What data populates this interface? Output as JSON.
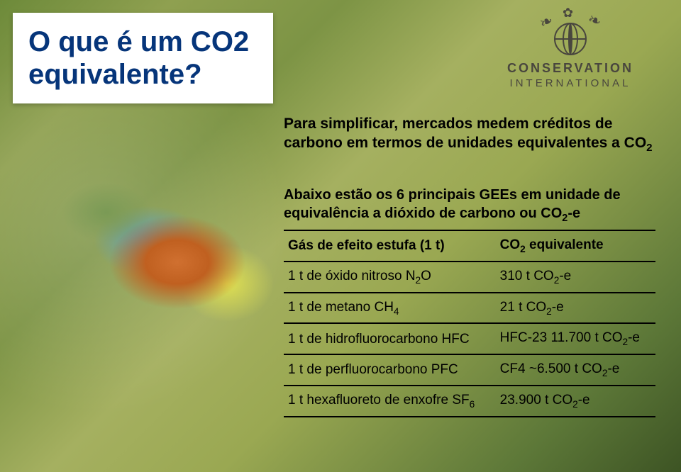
{
  "title": {
    "line1": "O que é um CO2",
    "line2": "equivalente?",
    "color": "#06357a",
    "background": "#ffffff",
    "font_size_pt": 30
  },
  "logo": {
    "line1": "CONSERVATION",
    "line2": "INTERNATIONAL",
    "color": "#49463e"
  },
  "subtitle_html": "Para simplificar, mercados medem créditos de carbono em termos de unidades equivalentes a CO<sub>2</sub>",
  "table": {
    "caption_html": "Abaixo estão os 6 principais GEEs em unidade de equivalência a dióxido de carbono ou CO<sub>2</sub>-e",
    "border_color": "#000000",
    "font_size_pt": 14,
    "header_weight": "bold",
    "columns": [
      {
        "html": "Gás de efeito estufa (1 t)",
        "width_pct": 57,
        "align": "left"
      },
      {
        "html": "CO<sub>2</sub> equivalente",
        "width_pct": 43,
        "align": "left"
      }
    ],
    "rows": [
      {
        "gas_html": "1 t de óxido nitroso N<sub>2</sub>O",
        "equiv_html": "310 t CO<sub>2</sub>-e"
      },
      {
        "gas_html": "1 t de metano CH<sub>4</sub>",
        "equiv_html": "21 t CO<sub>2</sub>-e"
      },
      {
        "gas_html": "1 t de hidrofluorocarbono HFC",
        "equiv_html": "HFC-23 11.700 t CO<sub>2</sub>-e"
      },
      {
        "gas_html": "1 t de perfluorocarbono PFC",
        "equiv_html": "CF4 ~6.500 t CO<sub>2</sub>-e"
      },
      {
        "gas_html": "1 t hexafluoreto de enxofre SF<sub>6</sub>",
        "equiv_html": "23.900 t CO<sub>2</sub>-e"
      }
    ]
  },
  "background": {
    "dominant_colors": [
      "#6d8a3a",
      "#8fa050",
      "#7d9445",
      "#a5b060",
      "#5d7838",
      "#3d5424"
    ],
    "subject_colors": [
      "#d07030",
      "#5aa0c0",
      "#e0e050",
      "#7a9a55"
    ]
  }
}
